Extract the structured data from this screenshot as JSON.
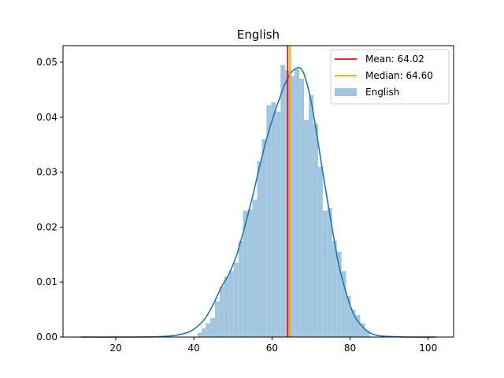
{
  "chart_data": {
    "type": "histogram",
    "title": "English",
    "xlabel": "",
    "ylabel": "",
    "xlim": [
      6.5,
      106.5
    ],
    "ylim": [
      0,
      0.053
    ],
    "xticks": [
      20,
      40,
      60,
      80,
      100
    ],
    "yticks": [
      0.0,
      0.01,
      0.02,
      0.03,
      0.04,
      0.05
    ],
    "ytick_labels": [
      "0.00",
      "0.01",
      "0.02",
      "0.03",
      "0.04",
      "0.05"
    ],
    "histogram": {
      "name": "English",
      "color": "#a2c6e0",
      "bins": [
        {
          "x0": 41.0,
          "x1": 42.0,
          "density": 0.0008
        },
        {
          "x0": 42.0,
          "x1": 43.0,
          "density": 0.0016
        },
        {
          "x0": 43.0,
          "x1": 44.2,
          "density": 0.0025
        },
        {
          "x0": 44.2,
          "x1": 45.4,
          "density": 0.0035
        },
        {
          "x0": 45.4,
          "x1": 46.6,
          "density": 0.0065
        },
        {
          "x0": 46.6,
          "x1": 47.8,
          "density": 0.0092
        },
        {
          "x0": 47.8,
          "x1": 49.0,
          "density": 0.011
        },
        {
          "x0": 49.0,
          "x1": 50.2,
          "density": 0.012
        },
        {
          "x0": 50.2,
          "x1": 51.4,
          "density": 0.0135
        },
        {
          "x0": 51.4,
          "x1": 52.6,
          "density": 0.0175
        },
        {
          "x0": 52.6,
          "x1": 53.8,
          "density": 0.023
        },
        {
          "x0": 53.8,
          "x1": 55.0,
          "density": 0.0232
        },
        {
          "x0": 55.0,
          "x1": 56.2,
          "density": 0.025
        },
        {
          "x0": 56.2,
          "x1": 57.4,
          "density": 0.032
        },
        {
          "x0": 57.4,
          "x1": 58.6,
          "density": 0.036
        },
        {
          "x0": 58.6,
          "x1": 59.8,
          "density": 0.0422
        },
        {
          "x0": 59.8,
          "x1": 61.0,
          "density": 0.0427
        },
        {
          "x0": 61.0,
          "x1": 62.2,
          "density": 0.041
        },
        {
          "x0": 62.2,
          "x1": 63.4,
          "density": 0.0495
        },
        {
          "x0": 63.4,
          "x1": 64.6,
          "density": 0.0485
        },
        {
          "x0": 64.6,
          "x1": 65.8,
          "density": 0.0475
        },
        {
          "x0": 65.8,
          "x1": 67.0,
          "density": 0.0488
        },
        {
          "x0": 67.0,
          "x1": 68.2,
          "density": 0.047
        },
        {
          "x0": 68.2,
          "x1": 69.4,
          "density": 0.0395
        },
        {
          "x0": 69.4,
          "x1": 70.6,
          "density": 0.044
        },
        {
          "x0": 70.6,
          "x1": 71.8,
          "density": 0.0388
        },
        {
          "x0": 71.8,
          "x1": 73.0,
          "density": 0.031
        },
        {
          "x0": 73.0,
          "x1": 74.2,
          "density": 0.023
        },
        {
          "x0": 74.2,
          "x1": 75.4,
          "density": 0.0235
        },
        {
          "x0": 75.4,
          "x1": 76.6,
          "density": 0.0175
        },
        {
          "x0": 76.6,
          "x1": 77.8,
          "density": 0.0155
        },
        {
          "x0": 77.8,
          "x1": 79.0,
          "density": 0.012
        },
        {
          "x0": 79.0,
          "x1": 80.2,
          "density": 0.0075
        },
        {
          "x0": 80.2,
          "x1": 81.4,
          "density": 0.005
        },
        {
          "x0": 81.4,
          "x1": 82.6,
          "density": 0.004
        },
        {
          "x0": 82.6,
          "x1": 83.8,
          "density": 0.0025
        },
        {
          "x0": 83.8,
          "x1": 85.0,
          "density": 0.0012
        }
      ]
    },
    "kde": {
      "name": "KDE",
      "color": "#1f77b4",
      "x": [
        11,
        25,
        32,
        36,
        39,
        41,
        43,
        45,
        47,
        49,
        51,
        53,
        55,
        57,
        59,
        61,
        62,
        63,
        64,
        65,
        66,
        67,
        68,
        69,
        70,
        71,
        72,
        73,
        75,
        77,
        79,
        81,
        83,
        85,
        87,
        90,
        95,
        102
      ],
      "y": [
        0.0,
        0.0,
        0.0001,
        0.0004,
        0.001,
        0.002,
        0.0035,
        0.006,
        0.009,
        0.0115,
        0.015,
        0.02,
        0.0255,
        0.0315,
        0.037,
        0.0415,
        0.0435,
        0.0455,
        0.047,
        0.0482,
        0.0488,
        0.049,
        0.0482,
        0.046,
        0.043,
        0.039,
        0.0345,
        0.03,
        0.0215,
        0.0135,
        0.008,
        0.004,
        0.002,
        0.0008,
        0.0003,
        0.0001,
        0.0,
        0.0
      ]
    },
    "vlines": [
      {
        "label": "Mean: 64.02",
        "x": 64.02,
        "color": "#ff0000"
      },
      {
        "label": "Median: 64.60",
        "x": 64.6,
        "color": "#ffa500"
      }
    ],
    "legend": {
      "position": "top-right",
      "entries": [
        {
          "label": "Mean: 64.02",
          "kind": "line",
          "color": "#ff0000"
        },
        {
          "label": "Median: 64.60",
          "kind": "line",
          "color": "#ffa500"
        },
        {
          "label": "English",
          "kind": "patch",
          "color": "#a2c6e0"
        }
      ]
    }
  }
}
